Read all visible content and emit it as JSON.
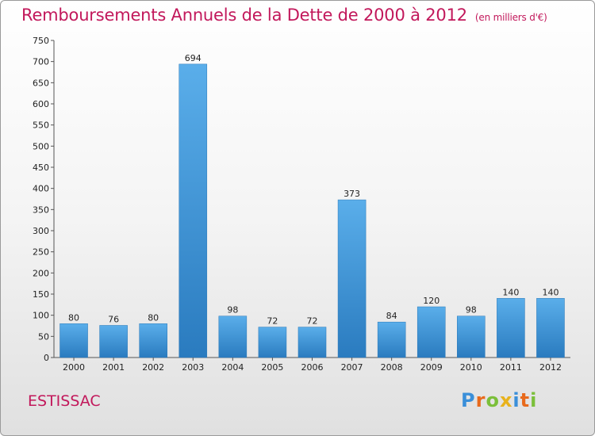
{
  "chart_data": {
    "type": "bar",
    "title": "Remboursements Annuels de la Dette de 2000 à 2012",
    "unit_note": "(en milliers d'€)",
    "categories": [
      "2000",
      "2001",
      "2002",
      "2003",
      "2004",
      "2005",
      "2006",
      "2007",
      "2008",
      "2009",
      "2010",
      "2011",
      "2012"
    ],
    "values": [
      80,
      76,
      80,
      694,
      98,
      72,
      72,
      373,
      84,
      120,
      98,
      140,
      140
    ],
    "ylim": [
      0,
      750
    ],
    "yticks": [
      0,
      50,
      100,
      150,
      200,
      250,
      300,
      350,
      400,
      450,
      500,
      550,
      600,
      650,
      700,
      750
    ],
    "xlabel": "",
    "ylabel": "",
    "grid": false,
    "bar_color": "#4a9fe0"
  },
  "commune": "ESTISSAC",
  "brand": {
    "letters": [
      "P",
      "r",
      "o",
      "x",
      "i",
      "t",
      "i"
    ],
    "colors": [
      "#3a8fd9",
      "#e86a1c",
      "#7bbf3a",
      "#e8b21c",
      "#3a8fd9",
      "#e86a1c",
      "#7bbf3a"
    ]
  }
}
